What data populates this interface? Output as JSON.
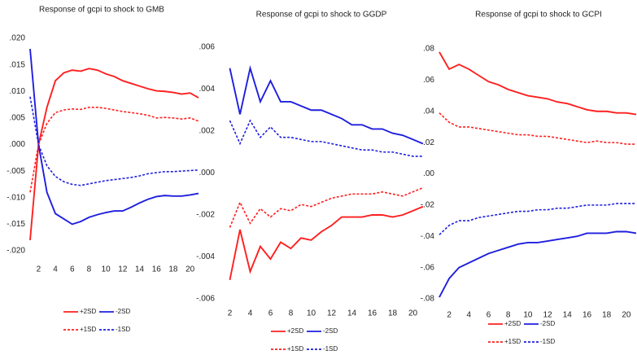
{
  "chart_data": [
    {
      "type": "line",
      "title": "Response of gcpi to shock to GMB",
      "x": [
        1,
        2,
        3,
        4,
        5,
        6,
        7,
        8,
        9,
        10,
        11,
        12,
        13,
        14,
        15,
        16,
        17,
        18,
        19,
        20,
        21
      ],
      "xlim": [
        1,
        21
      ],
      "xticks": [
        2,
        4,
        6,
        8,
        10,
        12,
        14,
        16,
        18,
        20
      ],
      "ylim": [
        -0.02,
        0.02
      ],
      "yticks": [
        {
          "value": 0.02,
          "label": ".020"
        },
        {
          "value": 0.015,
          "label": ".015"
        },
        {
          "value": 0.01,
          "label": ".010"
        },
        {
          "value": 0.005,
          "label": ".005"
        },
        {
          "value": 0,
          "label": ".000"
        },
        {
          "value": -0.005,
          "label": "-.005"
        },
        {
          "value": -0.01,
          "label": "-.010"
        },
        {
          "value": -0.015,
          "label": "-.015"
        },
        {
          "value": -0.02,
          "label": "-.020"
        }
      ],
      "series": [
        {
          "name": "+2SD",
          "color": "#ff1f1f",
          "dash": false,
          "values": [
            -0.018,
            0.0,
            0.007,
            0.012,
            0.0135,
            0.014,
            0.0138,
            0.0143,
            0.014,
            0.0133,
            0.0128,
            0.012,
            0.0115,
            0.011,
            0.0105,
            0.0101,
            0.01,
            0.0098,
            0.0095,
            0.0097,
            0.0088
          ]
        },
        {
          "name": "-2SD",
          "color": "#1f1fdf",
          "dash": false,
          "values": [
            0.018,
            0.0,
            -0.009,
            -0.013,
            -0.014,
            -0.015,
            -0.0145,
            -0.0137,
            -0.0132,
            -0.0128,
            -0.0125,
            -0.0125,
            -0.0118,
            -0.011,
            -0.0103,
            -0.0098,
            -0.0096,
            -0.0097,
            -0.0097,
            -0.0095,
            -0.0092
          ]
        },
        {
          "name": "+1SD",
          "color": "#ff1f1f",
          "dash": true,
          "values": [
            -0.009,
            0.0,
            0.004,
            0.006,
            0.0065,
            0.0067,
            0.0066,
            0.007,
            0.007,
            0.0068,
            0.0065,
            0.0062,
            0.006,
            0.0058,
            0.0055,
            0.005,
            0.0051,
            0.005,
            0.0048,
            0.005,
            0.0044
          ]
        },
        {
          "name": "-1SD",
          "color": "#1f1fdf",
          "dash": true,
          "values": [
            0.009,
            0.0,
            -0.004,
            -0.006,
            -0.007,
            -0.0075,
            -0.0077,
            -0.0074,
            -0.0071,
            -0.0068,
            -0.0066,
            -0.0064,
            -0.0062,
            -0.0059,
            -0.0055,
            -0.0053,
            -0.0051,
            -0.0051,
            -0.005,
            -0.0049,
            -0.0048
          ]
        }
      ]
    },
    {
      "type": "line",
      "title": "Response of gcpi to shock to GGDP",
      "x": [
        1,
        2,
        3,
        4,
        5,
        6,
        7,
        8,
        9,
        10,
        11,
        12,
        13,
        14,
        15,
        16,
        17,
        18,
        19,
        20,
        21
      ],
      "xlim": [
        1,
        21
      ],
      "xticks": [
        2,
        4,
        6,
        8,
        10,
        12,
        14,
        16,
        18,
        20
      ],
      "ylim": [
        -0.006,
        0.006
      ],
      "yticks": [
        {
          "value": 0.006,
          "label": ".006"
        },
        {
          "value": 0.004,
          "label": ".004"
        },
        {
          "value": 0.002,
          "label": ".002"
        },
        {
          "value": 0,
          "label": ".000"
        },
        {
          "value": -0.002,
          "label": "-.002"
        },
        {
          "value": -0.004,
          "label": "-.004"
        },
        {
          "value": -0.006,
          "label": "-.006"
        }
      ],
      "series": [
        {
          "name": "+2SD",
          "color": "#ff1f1f",
          "dash": false,
          "values": [
            null,
            -0.0051,
            -0.0027,
            -0.0047,
            -0.0035,
            -0.0041,
            -0.0033,
            -0.0036,
            -0.0031,
            -0.0032,
            -0.0028,
            -0.0025,
            -0.0021,
            -0.0021,
            -0.0021,
            -0.002,
            -0.002,
            -0.0021,
            -0.002,
            -0.0018,
            -0.0016
          ]
        },
        {
          "name": "-2SD",
          "color": "#1f1fdf",
          "dash": false,
          "values": [
            null,
            0.005,
            0.0028,
            0.005,
            0.0034,
            0.0044,
            0.0034,
            0.0034,
            0.0032,
            0.003,
            0.003,
            0.0028,
            0.0026,
            0.0023,
            0.0023,
            0.0021,
            0.0021,
            0.0019,
            0.0018,
            0.0016,
            0.0014
          ]
        },
        {
          "name": "+1SD",
          "color": "#ff1f1f",
          "dash": true,
          "values": [
            null,
            -0.0026,
            -0.0014,
            -0.0024,
            -0.0017,
            -0.0021,
            -0.0017,
            -0.0018,
            -0.0015,
            -0.0016,
            -0.0014,
            -0.0012,
            -0.0011,
            -0.001,
            -0.001,
            -0.001,
            -0.0009,
            -0.001,
            -0.0011,
            -0.0009,
            -0.0007
          ]
        },
        {
          "name": "-1SD",
          "color": "#1f1fdf",
          "dash": true,
          "values": [
            null,
            0.0025,
            0.0014,
            0.0025,
            0.0017,
            0.0022,
            0.0017,
            0.0017,
            0.0016,
            0.0015,
            0.0015,
            0.0014,
            0.0013,
            0.0012,
            0.0011,
            0.0011,
            0.001,
            0.001,
            0.0009,
            0.0008,
            0.0008
          ]
        }
      ]
    },
    {
      "type": "line",
      "title": "Response of gcpi to shock to GCPI",
      "x": [
        1,
        2,
        3,
        4,
        5,
        6,
        7,
        8,
        9,
        10,
        11,
        12,
        13,
        14,
        15,
        16,
        17,
        18,
        19,
        20,
        21
      ],
      "xlim": [
        1,
        21
      ],
      "xticks": [
        2,
        4,
        6,
        8,
        10,
        12,
        14,
        16,
        18,
        20
      ],
      "ylim": [
        -0.08,
        0.08
      ],
      "yticks": [
        {
          "value": 0.08,
          "label": ".08"
        },
        {
          "value": 0.06,
          "label": ".06"
        },
        {
          "value": 0.04,
          "label": ".04"
        },
        {
          "value": 0.02,
          "label": ".02"
        },
        {
          "value": 0,
          "label": ".00"
        },
        {
          "value": -0.02,
          "label": "-.02"
        },
        {
          "value": -0.04,
          "label": "-.04"
        },
        {
          "value": -0.06,
          "label": "-.06"
        },
        {
          "value": -0.08,
          "label": "-.08"
        }
      ],
      "series": [
        {
          "name": "+2SD",
          "color": "#ff1f1f",
          "dash": false,
          "values": [
            0.078,
            0.067,
            0.07,
            0.067,
            0.063,
            0.059,
            0.057,
            0.054,
            0.052,
            0.05,
            0.049,
            0.048,
            0.046,
            0.045,
            0.043,
            0.041,
            0.04,
            0.04,
            0.039,
            0.039,
            0.038
          ]
        },
        {
          "name": "-2SD",
          "color": "#1f1fdf",
          "dash": false,
          "values": [
            -0.079,
            -0.067,
            -0.06,
            -0.057,
            -0.054,
            -0.051,
            -0.049,
            -0.047,
            -0.045,
            -0.044,
            -0.044,
            -0.043,
            -0.042,
            -0.041,
            -0.04,
            -0.038,
            -0.038,
            -0.038,
            -0.037,
            -0.037,
            -0.038
          ]
        },
        {
          "name": "+1SD",
          "color": "#ff1f1f",
          "dash": true,
          "values": [
            0.039,
            0.033,
            0.03,
            0.03,
            0.029,
            0.028,
            0.027,
            0.026,
            0.025,
            0.025,
            0.024,
            0.024,
            0.023,
            0.022,
            0.021,
            0.02,
            0.021,
            0.02,
            0.02,
            0.019,
            0.019
          ]
        },
        {
          "name": "-1SD",
          "color": "#1f1fdf",
          "dash": true,
          "values": [
            -0.039,
            -0.033,
            -0.03,
            -0.03,
            -0.028,
            -0.027,
            -0.026,
            -0.025,
            -0.024,
            -0.024,
            -0.023,
            -0.023,
            -0.022,
            -0.022,
            -0.021,
            -0.02,
            -0.02,
            -0.02,
            -0.019,
            -0.019,
            -0.019
          ]
        }
      ]
    }
  ]
}
